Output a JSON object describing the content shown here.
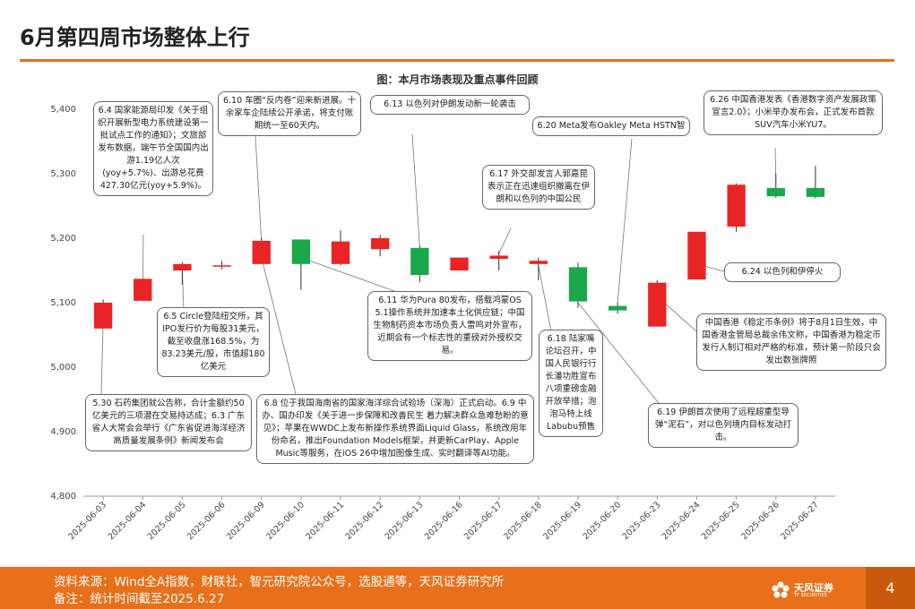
{
  "page": {
    "title": "6月第四周市场整体上行"
  },
  "chart_data": {
    "type": "candlestick",
    "title": "图：本月市场表现及重点事件回顾",
    "ylim": [
      4800,
      5400
    ],
    "yticks": [
      "4,800",
      "4,900",
      "5,000",
      "5,100",
      "5,200",
      "5,300",
      "5,400"
    ],
    "ytick_values": [
      4800,
      4900,
      5000,
      5100,
      5200,
      5300,
      5400
    ],
    "categories": [
      "2025-06-03",
      "2025-06-04",
      "2025-06-05",
      "2025-06-06",
      "2025-06-09",
      "2025-06-10",
      "2025-06-11",
      "2025-06-12",
      "2025-06-13",
      "2025-06-16",
      "2025-06-17",
      "2025-06-18",
      "2025-06-19",
      "2025-06-20",
      "2025-06-23",
      "2025-06-24",
      "2025-06-25",
      "2025-06-26",
      "2025-06-27"
    ],
    "candles": [
      {
        "open": 5060,
        "close": 5100,
        "high": 5105,
        "low": 5060
      },
      {
        "open": 5103,
        "close": 5137,
        "high": 5137,
        "low": 5103
      },
      {
        "open": 5150,
        "close": 5160,
        "high": 5163,
        "low": 5128
      },
      {
        "open": 5157,
        "close": 5158,
        "high": 5165,
        "low": 5152
      },
      {
        "open": 5160,
        "close": 5196,
        "high": 5200,
        "low": 5160
      },
      {
        "open": 5198,
        "close": 5160,
        "high": 5198,
        "low": 5120
      },
      {
        "open": 5160,
        "close": 5195,
        "high": 5212,
        "low": 5158
      },
      {
        "open": 5183,
        "close": 5200,
        "high": 5205,
        "low": 5172
      },
      {
        "open": 5185,
        "close": 5143,
        "high": 5188,
        "low": 5132
      },
      {
        "open": 5150,
        "close": 5170,
        "high": 5170,
        "low": 5150
      },
      {
        "open": 5168,
        "close": 5173,
        "high": 5180,
        "low": 5150
      },
      {
        "open": 5160,
        "close": 5165,
        "high": 5170,
        "low": 5135
      },
      {
        "open": 5155,
        "close": 5102,
        "high": 5162,
        "low": 5092
      },
      {
        "open": 5095,
        "close": 5088,
        "high": 5100,
        "low": 5083
      },
      {
        "open": 5063,
        "close": 5131,
        "high": 5135,
        "low": 5063
      },
      {
        "open": 5136,
        "close": 5210,
        "high": 5210,
        "low": 5136
      },
      {
        "open": 5218,
        "close": 5283,
        "high": 5285,
        "low": 5210
      },
      {
        "open": 5278,
        "close": 5265,
        "high": 5300,
        "low": 5263
      },
      {
        "open": 5278,
        "close": 5264,
        "high": 5312,
        "low": 5262
      }
    ],
    "colors": {
      "up": "#e82424",
      "down": "#19a84c"
    },
    "annotations": [
      {
        "id": "0604",
        "text": "6.4 国家能源局印发《关于组织开展新型电力系统建设第一批试点工作的通知》；文旅部发布数据，端午节全国国内出游1.19亿人次(yoy+5.7%)、出游总花费427.30亿元(yoy+5.9%)。"
      },
      {
        "id": "0610",
        "text": "6.10 车圈“反内卷”迎来新进展。十余家车企陆续公开承诺，将支付账期统一至60天内。"
      },
      {
        "id": "0613",
        "text": "6.13 以色列对伊朗发动新一轮袭击"
      },
      {
        "id": "0620",
        "text": "6.20 Meta发布Oakley Meta HSTN智"
      },
      {
        "id": "0626",
        "text": "6.26 中国香港发表《香港数字资产发展政策宣言2.0》；小米举办发布会，正式发布首款SUV汽车小米YU7。"
      },
      {
        "id": "0617",
        "text": "6.17 外交部发言人郭嘉昆表示正在迅速组织撤离在伊朗和以色列的中国公民"
      },
      {
        "id": "0605",
        "text": "6.5 Circle登陆纽交所，其IPO发行价为每股31美元，截至收盘涨168.5%，为83.23美元/股，市值超180亿美元"
      },
      {
        "id": "0611",
        "text": "6.11 华为Pura 80发布，搭载鸿蒙OS 5.1操作系统并加速本土化供应链；中国生物制药资本市场负责人雷鸣对外宣布，近期会有一个标志性的重磅对外授权交易。"
      },
      {
        "id": "0618",
        "text": "6.18 陆家嘴论坛召开，中国人民银行行长潘功胜宣布八项重磅金融开放举措；泡泡马特上线Labubu预售"
      },
      {
        "id": "0624",
        "text": "6.24 以色列和伊停火"
      },
      {
        "id": "hk",
        "text": "中国香港《稳定币条例》将于8月1日生效，中国香港金管局总裁余伟文称，中国香港为稳定币发行人制订相对严格的标准，预计第一阶段只会发出数张牌照"
      },
      {
        "id": "0530",
        "text": "5.30 石药集团就公告称，合计金额约50亿美元的三项潜在交易持达成；6.3 广东省人大常会会举行《广东省促进海洋经济高质量发展条例》新闻发布会"
      },
      {
        "id": "0608",
        "text": "6.8 位于我国海南省的国家海洋综合试验场（深海）正式启动。6.9 中办、国办印发《关于进一步保障和改善民生 着力解决群众急难愁盼的意见》；苹果在WWDC上发布新操作系统界面Liquid Glass，系统改用年份命名，推出Foundation Models框架，并更新CarPlay、Apple Music等服务，在iOS 26中增加图像生成、实时翻译等AI功能。"
      },
      {
        "id": "0619",
        "text": "6.19 伊朗首次使用了远程超重型导弹“泥石”，对以色列境内目标发动打击。"
      }
    ]
  },
  "footer": {
    "source": "资料来源：Wind全A指数，财联社，智元研究院公众号，选股通等，天风证券研究所",
    "note": "备注：统计时间截至2025.6.27",
    "logo_text": "天风证券",
    "logo_sub": "TF SECURITIES",
    "page_number": "4"
  }
}
